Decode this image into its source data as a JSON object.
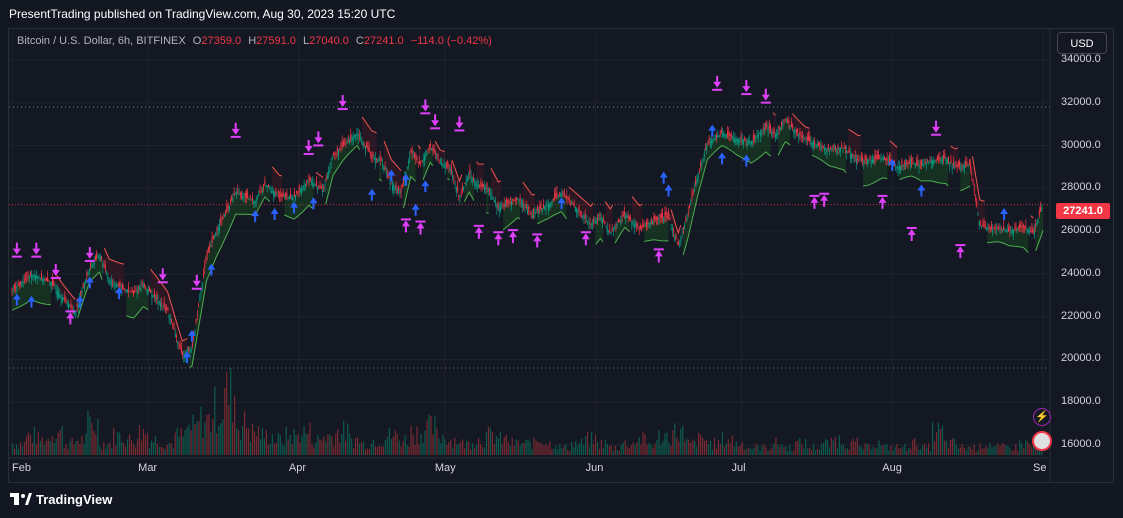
{
  "header": {
    "published": "PresentTrading published on TradingView.com, Aug 30, 2023 15:20 UTC"
  },
  "legend": {
    "symbol": "Bitcoin / U.S. Dollar, 6h, BITFINEX",
    "o_label": "O",
    "o": "27359.0",
    "h_label": "H",
    "h": "27591.0",
    "l_label": "L",
    "l": "27040.0",
    "c_label": "C",
    "c": "27241.0",
    "change": "−114.0 (−0.42%)"
  },
  "currency_button": "USD",
  "last_price_label": "27241.0",
  "footer": {
    "brand": "TradingView"
  },
  "colors": {
    "up": "#089981",
    "down": "#f23645",
    "band_up": "#4caf50",
    "band_down": "#ef5350",
    "buy_arrow": "#2962ff",
    "sell_arrow": "#e040fb",
    "background": "#141823"
  },
  "chart_data": {
    "type": "candlestick",
    "title": "Bitcoin / U.S. Dollar, 6h, BITFINEX",
    "ylim": [
      15000,
      35000
    ],
    "yticks": [
      "34000.0",
      "32000.0",
      "30000.0",
      "28000.0",
      "26000.0",
      "24000.0",
      "22000.0",
      "20000.0",
      "18000.0",
      "16000.0"
    ],
    "ytick_values": [
      34000,
      32000,
      30000,
      28000,
      26000,
      24000,
      22000,
      20000,
      18000,
      16000
    ],
    "xticks": [
      "Feb",
      "Mar",
      "Apr",
      "May",
      "Jun",
      "Jul",
      "Aug",
      "Se"
    ],
    "xtick_days": [
      0,
      28,
      59,
      89,
      120,
      150,
      181,
      212
    ],
    "days_span": 212,
    "dotted_levels": [
      31800,
      19600
    ],
    "last_price": 27241,
    "close_path": [
      [
        0,
        23200
      ],
      [
        4,
        24000
      ],
      [
        8,
        23600
      ],
      [
        10,
        23000
      ],
      [
        13,
        22200
      ],
      [
        16,
        24300
      ],
      [
        18,
        24900
      ],
      [
        20,
        23700
      ],
      [
        22,
        23400
      ],
      [
        25,
        23100
      ],
      [
        27,
        23500
      ],
      [
        29,
        23000
      ],
      [
        32,
        22300
      ],
      [
        35,
        20200
      ],
      [
        37,
        20500
      ],
      [
        40,
        24800
      ],
      [
        42,
        26000
      ],
      [
        46,
        27800
      ],
      [
        50,
        27400
      ],
      [
        52,
        28200
      ],
      [
        55,
        27600
      ],
      [
        58,
        27600
      ],
      [
        61,
        28400
      ],
      [
        64,
        27900
      ],
      [
        66,
        29500
      ],
      [
        68,
        30000
      ],
      [
        71,
        30600
      ],
      [
        74,
        29500
      ],
      [
        76,
        29300
      ],
      [
        78,
        28200
      ],
      [
        80,
        27800
      ],
      [
        82,
        29700
      ],
      [
        84,
        29100
      ],
      [
        86,
        30000
      ],
      [
        88,
        29200
      ],
      [
        90,
        29000
      ],
      [
        92,
        27600
      ],
      [
        94,
        28700
      ],
      [
        96,
        28100
      ],
      [
        98,
        28000
      ],
      [
        100,
        27100
      ],
      [
        104,
        27500
      ],
      [
        107,
        26800
      ],
      [
        110,
        27200
      ],
      [
        113,
        27800
      ],
      [
        116,
        27100
      ],
      [
        119,
        26300
      ],
      [
        121,
        26700
      ],
      [
        123,
        25900
      ],
      [
        126,
        26800
      ],
      [
        129,
        26100
      ],
      [
        132,
        26500
      ],
      [
        135,
        26700
      ],
      [
        137,
        25300
      ],
      [
        139,
        26800
      ],
      [
        141,
        28600
      ],
      [
        143,
        30100
      ],
      [
        146,
        30600
      ],
      [
        149,
        30300
      ],
      [
        152,
        30200
      ],
      [
        155,
        30900
      ],
      [
        157,
        30500
      ],
      [
        159,
        31200
      ],
      [
        161,
        30700
      ],
      [
        163,
        30300
      ],
      [
        166,
        30000
      ],
      [
        168,
        29800
      ],
      [
        171,
        29900
      ],
      [
        174,
        29300
      ],
      [
        176,
        29300
      ],
      [
        179,
        29400
      ],
      [
        182,
        29000
      ],
      [
        185,
        29200
      ],
      [
        187,
        29100
      ],
      [
        189,
        29300
      ],
      [
        192,
        29400
      ],
      [
        194,
        29000
      ],
      [
        197,
        29100
      ],
      [
        199,
        26300
      ],
      [
        201,
        26100
      ],
      [
        203,
        26100
      ],
      [
        205,
        26000
      ],
      [
        208,
        26200
      ],
      [
        210,
        25900
      ],
      [
        212,
        27241
      ]
    ],
    "volume": [
      3,
      5,
      4,
      6,
      3,
      4,
      8,
      3,
      5,
      4,
      6,
      4,
      3,
      5,
      7,
      9,
      12,
      16,
      8,
      6,
      5,
      4,
      5,
      6,
      4,
      5,
      6,
      4,
      3,
      4,
      5,
      4,
      6,
      7,
      5,
      4,
      3,
      4,
      5,
      4,
      3,
      3,
      4,
      3,
      2,
      3,
      4,
      3,
      2,
      3,
      4,
      3,
      5,
      6,
      3,
      4,
      3,
      4,
      3,
      2,
      2,
      3,
      2,
      3,
      2,
      3,
      4,
      3,
      2,
      3,
      2,
      2,
      3,
      2,
      6,
      3,
      2,
      2,
      3,
      2,
      2,
      3,
      2
    ],
    "buy_signals": [
      [
        1,
        22800
      ],
      [
        4,
        22700
      ],
      [
        14,
        22700
      ],
      [
        16,
        23600
      ],
      [
        22,
        23100
      ],
      [
        36,
        20100
      ],
      [
        37,
        21100
      ],
      [
        41,
        24200
      ],
      [
        50,
        26700
      ],
      [
        54,
        26800
      ],
      [
        58,
        27100
      ],
      [
        62,
        27300
      ],
      [
        74,
        27700
      ],
      [
        78,
        28600
      ],
      [
        81,
        28400
      ],
      [
        83,
        27000
      ],
      [
        85,
        28100
      ],
      [
        113,
        27300
      ],
      [
        134,
        28500
      ],
      [
        135,
        27900
      ],
      [
        144,
        30700
      ],
      [
        146,
        29400
      ],
      [
        151,
        29300
      ],
      [
        181,
        29100
      ],
      [
        187,
        27900
      ],
      [
        204,
        26800
      ]
    ],
    "sell_signals": [
      [
        1,
        24900
      ],
      [
        5,
        24900
      ],
      [
        9,
        23900
      ],
      [
        16,
        24700
      ],
      [
        31,
        23700
      ],
      [
        38,
        23400
      ],
      [
        46,
        30500
      ],
      [
        61,
        29700
      ],
      [
        63,
        30100
      ],
      [
        68,
        31800
      ],
      [
        85,
        31600
      ],
      [
        87,
        30900
      ],
      [
        92,
        30800
      ],
      [
        145,
        32700
      ],
      [
        151,
        32500
      ],
      [
        155,
        32100
      ],
      [
        190,
        30600
      ]
    ],
    "buy_tags": [
      [
        81,
        26500
      ],
      [
        84,
        26400
      ],
      [
        96,
        26200
      ],
      [
        100,
        25900
      ],
      [
        103,
        26000
      ],
      [
        108,
        25800
      ],
      [
        118,
        25900
      ],
      [
        133,
        25100
      ],
      [
        165,
        27600
      ],
      [
        167,
        27700
      ],
      [
        179,
        27600
      ],
      [
        185,
        26100
      ],
      [
        195,
        25300
      ],
      [
        12,
        22200
      ]
    ]
  }
}
